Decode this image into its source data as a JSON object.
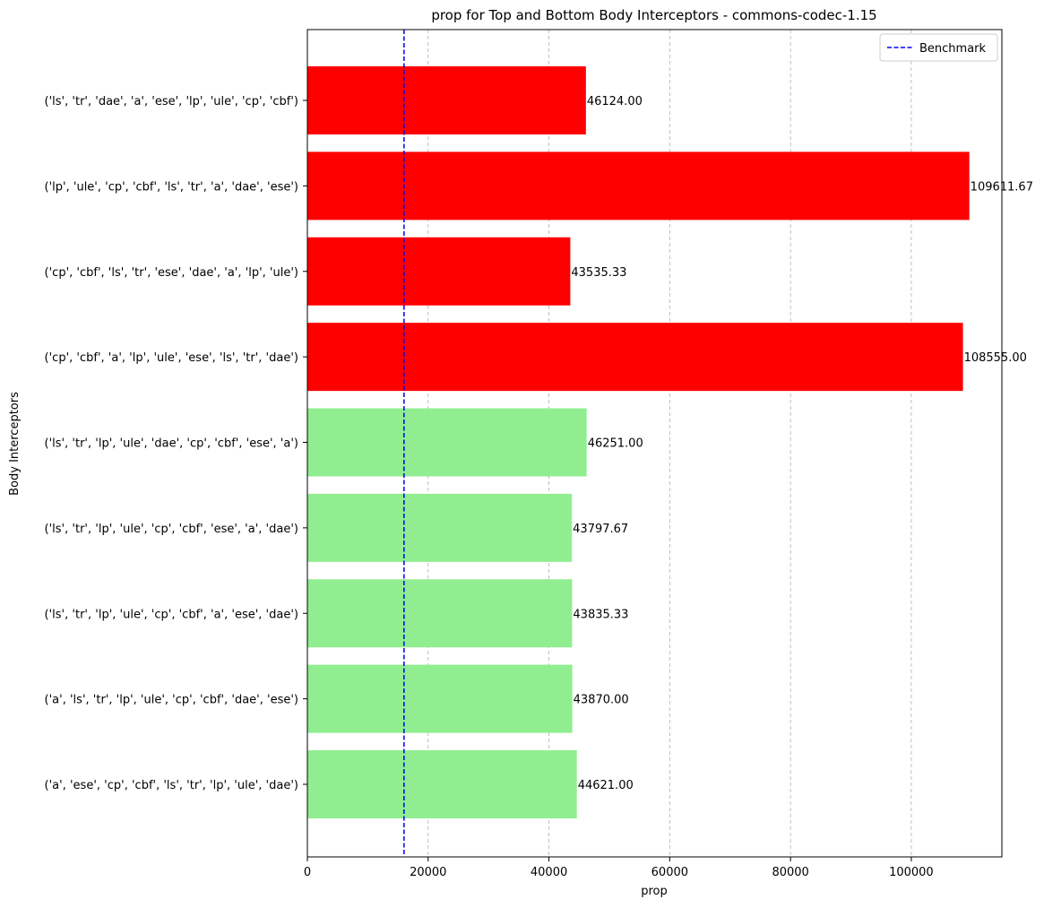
{
  "chart_data": {
    "type": "bar",
    "orientation": "horizontal",
    "title": "prop for Top and Bottom Body Interceptors - commons-codec-1.15",
    "xlabel": "prop",
    "ylabel": "Body Interceptors",
    "xlim": [
      0,
      115000
    ],
    "xticks": [
      0,
      20000,
      40000,
      60000,
      80000,
      100000
    ],
    "grid": {
      "x": true,
      "y": false,
      "style": "dashed"
    },
    "legend": {
      "placement": "top-right",
      "entries": [
        "Benchmark"
      ]
    },
    "benchmark": {
      "label": "Benchmark",
      "value": 16000,
      "color": "#0000ff",
      "style": "dashed"
    },
    "colors": {
      "top": "#ff0000",
      "bottom": "#90ee90"
    },
    "categories": [
      "('ls', 'tr', 'dae', 'a', 'ese', 'lp', 'ule', 'cp', 'cbf')",
      "('lp', 'ule', 'cp', 'cbf', 'ls', 'tr', 'a', 'dae', 'ese')",
      "('cp', 'cbf', 'ls', 'tr', 'ese', 'dae', 'a', 'lp', 'ule')",
      "('cp', 'cbf', 'a', 'lp', 'ule', 'ese', 'ls', 'tr', 'dae')",
      "('ls', 'tr', 'lp', 'ule', 'dae', 'cp', 'cbf', 'ese', 'a')",
      "('ls', 'tr', 'lp', 'ule', 'cp', 'cbf', 'ese', 'a', 'dae')",
      "('ls', 'tr', 'lp', 'ule', 'cp', 'cbf', 'a', 'ese', 'dae')",
      "('a', 'ls', 'tr', 'lp', 'ule', 'cp', 'cbf', 'dae', 'ese')",
      "('a', 'ese', 'cp', 'cbf', 'ls', 'tr', 'lp', 'ule', 'dae')"
    ],
    "values": [
      46124.0,
      109611.67,
      43535.33,
      108555.0,
      46251.0,
      43797.67,
      43835.33,
      43870.0,
      44621.0
    ],
    "value_labels": [
      "46124.00",
      "109611.67",
      "43535.33",
      "108555.00",
      "46251.00",
      "43797.67",
      "43835.33",
      "43870.00",
      "44621.00"
    ],
    "bar_groups": [
      "top",
      "top",
      "top",
      "top",
      "bottom",
      "bottom",
      "bottom",
      "bottom",
      "bottom"
    ]
  }
}
